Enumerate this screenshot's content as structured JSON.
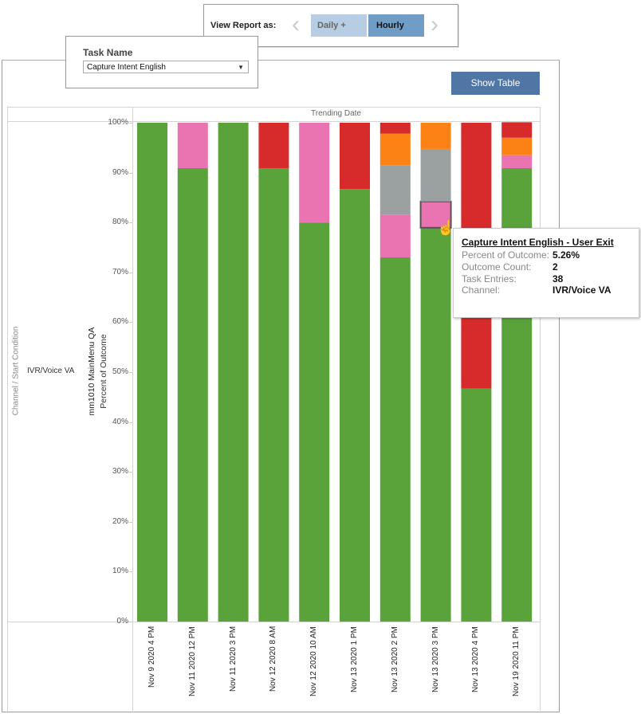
{
  "view_report": {
    "label": "View Report as:",
    "options": [
      "Daily +",
      "Hourly"
    ],
    "selected": "Hourly",
    "prev_icon": "chevron-left-icon",
    "next_icon": "chevron-right-icon"
  },
  "task_filter": {
    "title": "Task Name",
    "value": "Capture Intent English"
  },
  "show_table_label": "Show Table",
  "colors": {
    "green": "#59a33a",
    "pink": "#ea73b2",
    "gray": "#9ba0a0",
    "orange": "#fd8215",
    "red": "#d72a2a",
    "button": "#4f76a5"
  },
  "chart_data": {
    "type": "bar",
    "stacked": true,
    "column_header": "Trending Date",
    "row_header": "Channel / Start Condition",
    "row_value": "IVR/Voice VA",
    "ylabel_line1": "mm1010 MainMenu QA",
    "ylabel_line2": "Percent of Outcome",
    "ylim": [
      0,
      100
    ],
    "yticks": [
      "0%",
      "10%",
      "20%",
      "30%",
      "40%",
      "50%",
      "60%",
      "70%",
      "80%",
      "90%",
      "100%"
    ],
    "categories": [
      "Nov 9 2020 4 PM",
      "Nov 11 2020 12 PM",
      "Nov 11 2020 3 PM",
      "Nov 12 2020 8 AM",
      "Nov 12 2020 10 AM",
      "Nov 13 2020 1 PM",
      "Nov 13 2020 2 PM",
      "Nov 13 2020 3 PM",
      "Nov 13 2020 4 PM",
      "Nov 19 2020 11 PM"
    ],
    "series": [
      {
        "color": "green",
        "values": [
          100,
          90.9,
          100,
          90.9,
          80,
          86.7,
          73.0,
          78.95,
          46.7,
          90.9
        ]
      },
      {
        "name": "User Exit",
        "color": "pink",
        "values": [
          0,
          9.1,
          0,
          0,
          20,
          0,
          8.6,
          5.26,
          0,
          2.6
        ]
      },
      {
        "color": "gray",
        "values": [
          0,
          0,
          0,
          0,
          0,
          0,
          9.9,
          10.53,
          0,
          0
        ]
      },
      {
        "color": "orange",
        "values": [
          0,
          0,
          0,
          0,
          0,
          0,
          6.3,
          5.26,
          0,
          3.5
        ]
      },
      {
        "color": "red",
        "values": [
          0,
          0,
          0,
          9.1,
          0,
          13.3,
          2.2,
          0,
          53.3,
          3.1
        ]
      }
    ],
    "highlighted": {
      "category_index": 7,
      "series_index": 1
    },
    "grid": false,
    "legend": "none"
  },
  "tooltip": {
    "title": "Capture Intent English - User Exit",
    "rows": [
      {
        "key": "Percent of Outcome:",
        "value": "5.26%"
      },
      {
        "key": "Outcome Count:",
        "value": "2"
      },
      {
        "key": "Task Entries:",
        "value": "38"
      },
      {
        "key": "Channel:",
        "value": "IVR/Voice VA"
      }
    ]
  }
}
